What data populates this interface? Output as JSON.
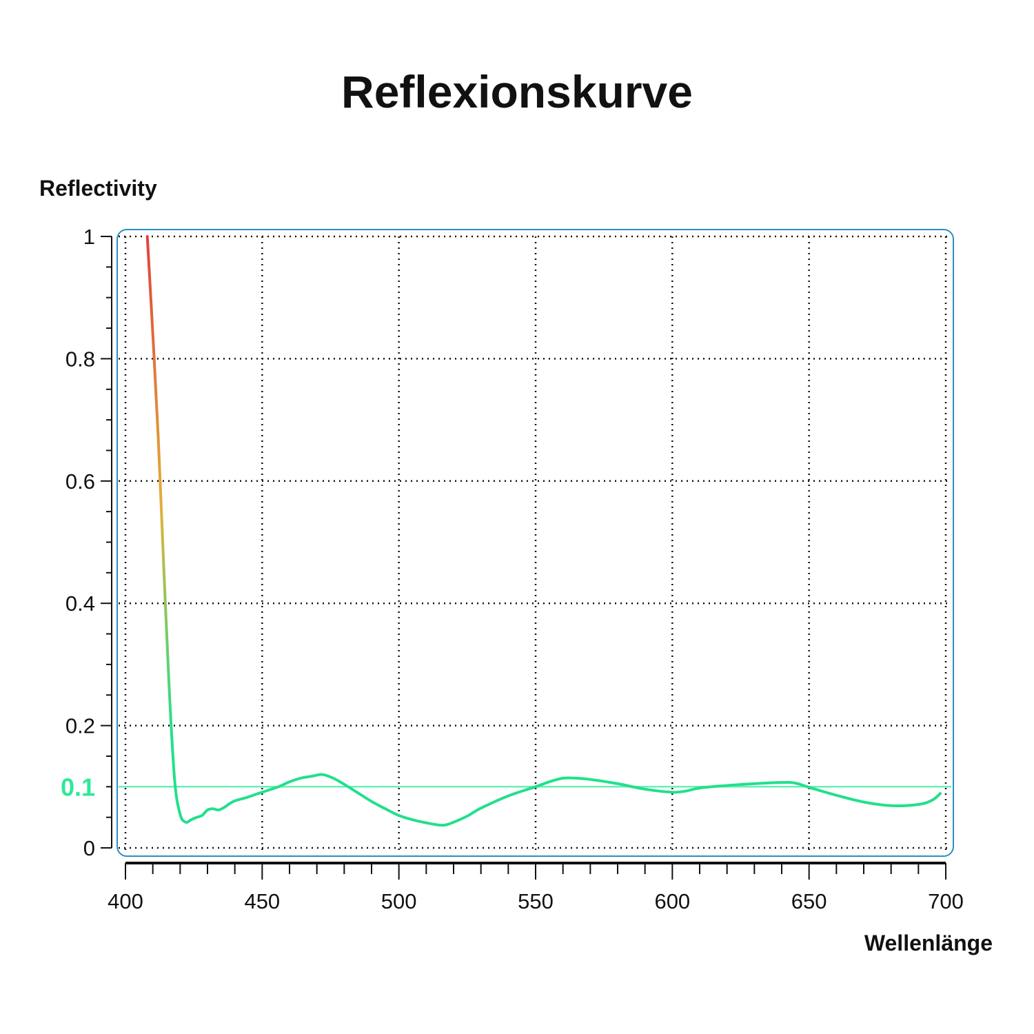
{
  "chart_data": {
    "type": "line",
    "title": "Reflexionskurve",
    "xlabel": "Wellenlänge",
    "ylabel": "Reflectivity",
    "xlim": [
      400,
      700
    ],
    "ylim": [
      0,
      1
    ],
    "x_ticks": [
      "400",
      "450",
      "500",
      "550",
      "600",
      "650",
      "700"
    ],
    "y_ticks": [
      "0",
      "0.2",
      "0.4",
      "0.6",
      "0.8",
      "1"
    ],
    "grid": true,
    "reference_line": {
      "value": 0.1,
      "label": "0.1",
      "color": "#2ee89a"
    },
    "series": [
      {
        "color_high": "#e0413a",
        "color_mid": "#e0b23a",
        "color_low": "#22e08c",
        "x": [
          408,
          410,
          412,
          414,
          416,
          418,
          420,
          422,
          424,
          426,
          428,
          430,
          432,
          434,
          436,
          438,
          440,
          444,
          448,
          452,
          456,
          460,
          464,
          468,
          472,
          476,
          480,
          485,
          490,
          495,
          500,
          505,
          510,
          516,
          520,
          525,
          530,
          540,
          550,
          555,
          560,
          565,
          570,
          580,
          590,
          600,
          605,
          610,
          620,
          630,
          640,
          645,
          650,
          660,
          670,
          680,
          690,
          695,
          698
        ],
        "y": [
          1.0,
          0.84,
          0.67,
          0.46,
          0.26,
          0.11,
          0.055,
          0.042,
          0.046,
          0.05,
          0.053,
          0.062,
          0.064,
          0.062,
          0.066,
          0.072,
          0.077,
          0.082,
          0.088,
          0.094,
          0.1,
          0.108,
          0.114,
          0.117,
          0.12,
          0.114,
          0.104,
          0.09,
          0.076,
          0.064,
          0.053,
          0.046,
          0.041,
          0.037,
          0.042,
          0.052,
          0.065,
          0.085,
          0.1,
          0.108,
          0.114,
          0.114,
          0.112,
          0.105,
          0.096,
          0.091,
          0.093,
          0.098,
          0.102,
          0.105,
          0.107,
          0.106,
          0.099,
          0.086,
          0.075,
          0.069,
          0.071,
          0.078,
          0.089
        ]
      }
    ]
  }
}
